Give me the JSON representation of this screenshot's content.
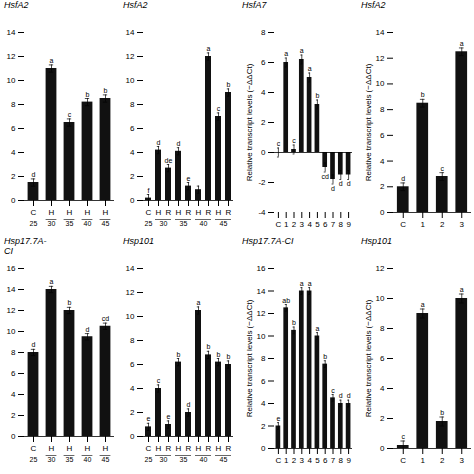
{
  "chart_data": [
    {
      "type": "bar",
      "title": "HsfA2",
      "categories": [
        "C",
        "H",
        "H",
        "H",
        "H"
      ],
      "values": [
        1.5,
        11.0,
        6.5,
        8.2,
        8.5
      ],
      "errors": [
        0.3,
        0.3,
        0.3,
        0.3,
        0.3
      ],
      "labels": [
        "d",
        "a",
        "c",
        "b",
        "b"
      ],
      "groups": [
        "25",
        "30",
        "35",
        "40",
        "45"
      ],
      "color": "#111111",
      "ylim": [
        0,
        14
      ],
      "yticks": [
        0,
        2,
        4,
        6,
        8,
        10,
        12,
        14
      ]
    },
    {
      "type": "bar",
      "title": "HsfA2",
      "categories": [
        "C",
        "H",
        "R",
        "H",
        "R",
        "H",
        "R",
        "H",
        "R"
      ],
      "values": [
        0.2,
        4.2,
        2.7,
        4.1,
        1.2,
        0.9,
        12.0,
        7.0,
        9.0
      ],
      "errors": [
        0.3,
        0.3,
        0.3,
        0.3,
        0.3,
        0.3,
        0.3,
        0.3,
        0.3
      ],
      "labels": [
        "f",
        "d",
        "de",
        "d",
        "e",
        null,
        "a",
        "c",
        "b"
      ],
      "groups": [
        "25",
        "30",
        "35",
        "40",
        "45"
      ],
      "color": "#111111",
      "ylim": [
        0,
        14
      ],
      "yticks": [
        0,
        2,
        4,
        6,
        8,
        10,
        12,
        14
      ]
    },
    {
      "type": "bar",
      "title": "Hsp17.7A-\nCI",
      "categories": [
        "C",
        "H",
        "H",
        "H",
        "H"
      ],
      "values": [
        8.0,
        14.0,
        12.0,
        9.5,
        10.5
      ],
      "errors": [
        0.3,
        0.3,
        0.3,
        0.3,
        0.3
      ],
      "labels": [
        "d",
        "a",
        "b",
        "d",
        "cd"
      ],
      "groups": [
        "25",
        "30",
        "35",
        "40",
        "45"
      ],
      "color": "#111111",
      "ylim": [
        0,
        16
      ],
      "yticks": [
        0,
        2,
        4,
        6,
        8,
        10,
        12,
        14,
        16
      ]
    },
    {
      "type": "bar",
      "title": "Hsp101",
      "categories": [
        "C",
        "H",
        "R",
        "H",
        "R",
        "H",
        "R",
        "H",
        "R"
      ],
      "values": [
        0.8,
        4.0,
        1.0,
        6.2,
        2.0,
        10.5,
        6.8,
        6.2,
        6.0
      ],
      "errors": [
        0.3,
        0.3,
        0.3,
        0.3,
        0.3,
        0.3,
        0.3,
        0.3,
        0.3
      ],
      "labels": [
        "e",
        "c",
        "e",
        "b",
        "d",
        "a",
        "b",
        "b",
        "b"
      ],
      "groups": [
        "25",
        "30",
        "35",
        "40",
        "45"
      ],
      "color": "#111111",
      "ylim": [
        0,
        14
      ],
      "yticks": [
        0,
        2,
        4,
        6,
        8,
        10,
        12,
        14
      ]
    },
    {
      "type": "bar",
      "title": "HsfA7",
      "ylabel": "Relative transcript levels (−ΔΔCt)",
      "categories": [
        "C",
        "1",
        "2",
        "3",
        "4",
        "5",
        "6",
        "7",
        "8",
        "9"
      ],
      "values": [
        0.0,
        6.0,
        0.2,
        6.2,
        5.0,
        3.2,
        -1.0,
        -1.8,
        -1.5,
        -1.5
      ],
      "errors": [
        0.3,
        0.3,
        0.3,
        0.3,
        0.3,
        0.3,
        0.3,
        0.3,
        0.3,
        0.3
      ],
      "labels": [
        "c",
        "a",
        "c",
        "a",
        "a",
        "b",
        "cd",
        "d",
        "d",
        "d"
      ],
      "color": "#111111",
      "ylim": [
        -4,
        8
      ],
      "yticks": [
        -4,
        -2,
        0,
        2,
        4,
        6,
        8
      ]
    },
    {
      "type": "bar",
      "title": "HsfA2",
      "ylabel": "Relative transcript levels (−ΔΔCt)",
      "categories": [
        "C",
        "1",
        "2",
        "3"
      ],
      "values": [
        2.0,
        8.5,
        2.8,
        12.5
      ],
      "errors": [
        0.3,
        0.3,
        0.3,
        0.3
      ],
      "labels": [
        "d",
        "b",
        "c",
        "a"
      ],
      "color": "#111111",
      "ylim": [
        0,
        14
      ],
      "yticks": [
        0,
        2,
        4,
        6,
        8,
        10,
        12,
        14
      ]
    },
    {
      "type": "bar",
      "title": "Hsp17.7A-CI",
      "ylabel": "Relative transcript levels (−ΔΔCt)",
      "categories": [
        "C",
        "1",
        "2",
        "3",
        "4",
        "5",
        "6",
        "7",
        "8",
        "9"
      ],
      "values": [
        2.0,
        12.5,
        10.5,
        14.0,
        14.0,
        10.0,
        7.5,
        4.5,
        4.0,
        4.0
      ],
      "errors": [
        0.3,
        0.3,
        0.3,
        0.3,
        0.3,
        0.3,
        0.3,
        0.3,
        0.3,
        0.3
      ],
      "labels": [
        "e",
        "ab",
        "b",
        "a",
        "a",
        "a",
        "b",
        "c",
        "d",
        "d"
      ],
      "color": "#111111",
      "ylim": [
        0,
        16
      ],
      "yticks": [
        0,
        2,
        4,
        6,
        8,
        10,
        12,
        14,
        16
      ]
    },
    {
      "type": "bar",
      "title": "Hsp101",
      "ylabel": "Relative transcript levels (−ΔΔCt)",
      "categories": [
        "C",
        "1",
        "2",
        "3"
      ],
      "values": [
        0.2,
        9.0,
        1.8,
        10.0
      ],
      "errors": [
        0.3,
        0.3,
        0.3,
        0.3
      ],
      "labels": [
        "c",
        "a",
        "b",
        "a"
      ],
      "color": "#111111",
      "ylim": [
        0,
        12
      ],
      "yticks": [
        0,
        2,
        4,
        6,
        8,
        10,
        12
      ]
    }
  ]
}
